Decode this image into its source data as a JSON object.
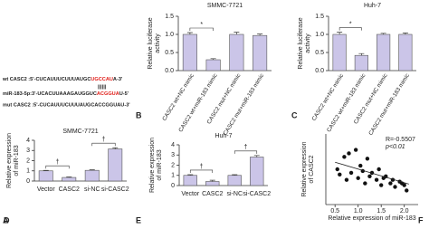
{
  "panel_a": {
    "wt": {
      "start": "wt CASC2 :5'-CUCAUUUCUUUAUGC",
      "site": "UGCCAU",
      "end": "A-3'"
    },
    "pairs": "||||||",
    "mir": {
      "start": "miR-183-5p:3'-UCACUUAAAGAUGGUC",
      "site": "ACGGUA",
      "end": "U-5'"
    },
    "mut": "mut CASC2 :5'-CUCAUUUCUUUAUGCACCGGUAU-3'",
    "panel": "A"
  },
  "chart_data": [
    {
      "type": "bar",
      "panel": "B",
      "title": "SMMC-7721",
      "ylabel": [
        "Relative luciferase",
        "activity"
      ],
      "categories": [
        "CASC2 wt+NC mimic",
        "CASC2 wt+miR-183 mimic",
        "CASC2 mut+NC mimic",
        "CASC2 mut+miR-183 mimic"
      ],
      "values": [
        1.0,
        0.3,
        1.0,
        0.97
      ],
      "errors": [
        0.05,
        0.03,
        0.06,
        0.04
      ],
      "color": "#cbc5e8",
      "ylim": [
        0,
        1.5
      ],
      "yticks": [
        {
          "value": 0,
          "label": "0.0"
        },
        0.5,
        {
          "value": 1,
          "label": "1.0"
        },
        1.5
      ],
      "annotations": [
        "*"
      ]
    },
    {
      "type": "bar",
      "panel": "C",
      "title": "Huh-7",
      "ylabel": [
        "Relative luciferase",
        "activity"
      ],
      "categories": [
        "CASC2 wt+NC mimic",
        "CASC2 wt+miR-183 mimic",
        "CASC2 mut+NC mimic",
        "CASC2 mut+miR-183 mimic"
      ],
      "values": [
        1.0,
        0.42,
        1.0,
        1.0
      ],
      "errors": [
        0.06,
        0.05,
        0.03,
        0.04
      ],
      "color": "#cbc5e8",
      "ylim": [
        0,
        1.5
      ],
      "yticks": [
        {
          "value": 0,
          "label": "0.0"
        },
        0.5,
        {
          "value": 1,
          "label": "1.0"
        },
        1.5
      ],
      "annotations": [
        "*"
      ]
    },
    {
      "type": "bar",
      "panel": "D",
      "title": "SMMC-7721",
      "ylabel": [
        "Relative expression",
        "of miR-183"
      ],
      "categories": [
        "Vector",
        "CASC2",
        "si-NC",
        "si-CASC2"
      ],
      "values": [
        1.0,
        0.35,
        1.05,
        3.15
      ],
      "errors": [
        0.05,
        0.05,
        0.05,
        0.12
      ],
      "color": "#cbc5e8",
      "ylim": [
        0,
        4
      ],
      "yticks": [
        0,
        1,
        2,
        3,
        4
      ],
      "annotations": [
        "†",
        "†"
      ]
    },
    {
      "type": "bar",
      "panel": "E",
      "title": "Huh-7",
      "ylabel": [
        "Relative expression",
        "of miR-183"
      ],
      "categories": [
        "Vector",
        "CASC2",
        "si-NC",
        "si-CASC2"
      ],
      "values": [
        1.0,
        0.4,
        1.0,
        2.8
      ],
      "errors": [
        0.07,
        0.12,
        0.07,
        0.15
      ],
      "color": "#cbc5e8",
      "ylim": [
        0,
        4
      ],
      "yticks": [
        0,
        1,
        2,
        3,
        4
      ],
      "annotations": [
        "†",
        "†"
      ]
    },
    {
      "type": "scatter",
      "panel": "F",
      "xlabel": "Relative expression of miR-183",
      "ylabel": [
        "Relative expression",
        "of CASC2"
      ],
      "annotations": [
        "R=-0.5507",
        "p<0.01"
      ],
      "color": "#111111",
      "x": [
        0.55,
        0.6,
        0.7,
        0.75,
        0.8,
        0.85,
        0.95,
        1.0,
        1.05,
        1.1,
        1.15,
        1.2,
        1.25,
        1.3,
        1.4,
        1.45,
        1.5,
        1.55,
        1.6,
        1.7,
        1.75,
        1.8,
        1.9,
        1.95,
        2.0,
        2.05
      ],
      "y": [
        1.0,
        0.85,
        1.35,
        0.7,
        1.45,
        0.9,
        1.55,
        0.75,
        1.1,
        0.95,
        0.6,
        1.3,
        0.8,
        0.9,
        0.7,
        1.0,
        0.55,
        0.75,
        0.8,
        0.6,
        0.7,
        0.5,
        0.65,
        0.6,
        0.55,
        0.4
      ],
      "trend": {
        "x": [
          0.5,
          2.1
        ],
        "y": [
          1.2,
          0.58
        ]
      },
      "xlim": [
        0.3,
        2.3
      ],
      "ylim": [
        0,
        2
      ],
      "xticks": [
        0.5,
        {
          "value": 1,
          "label": "1.0"
        },
        1.5,
        {
          "value": 2,
          "label": "2.0"
        }
      ]
    }
  ]
}
